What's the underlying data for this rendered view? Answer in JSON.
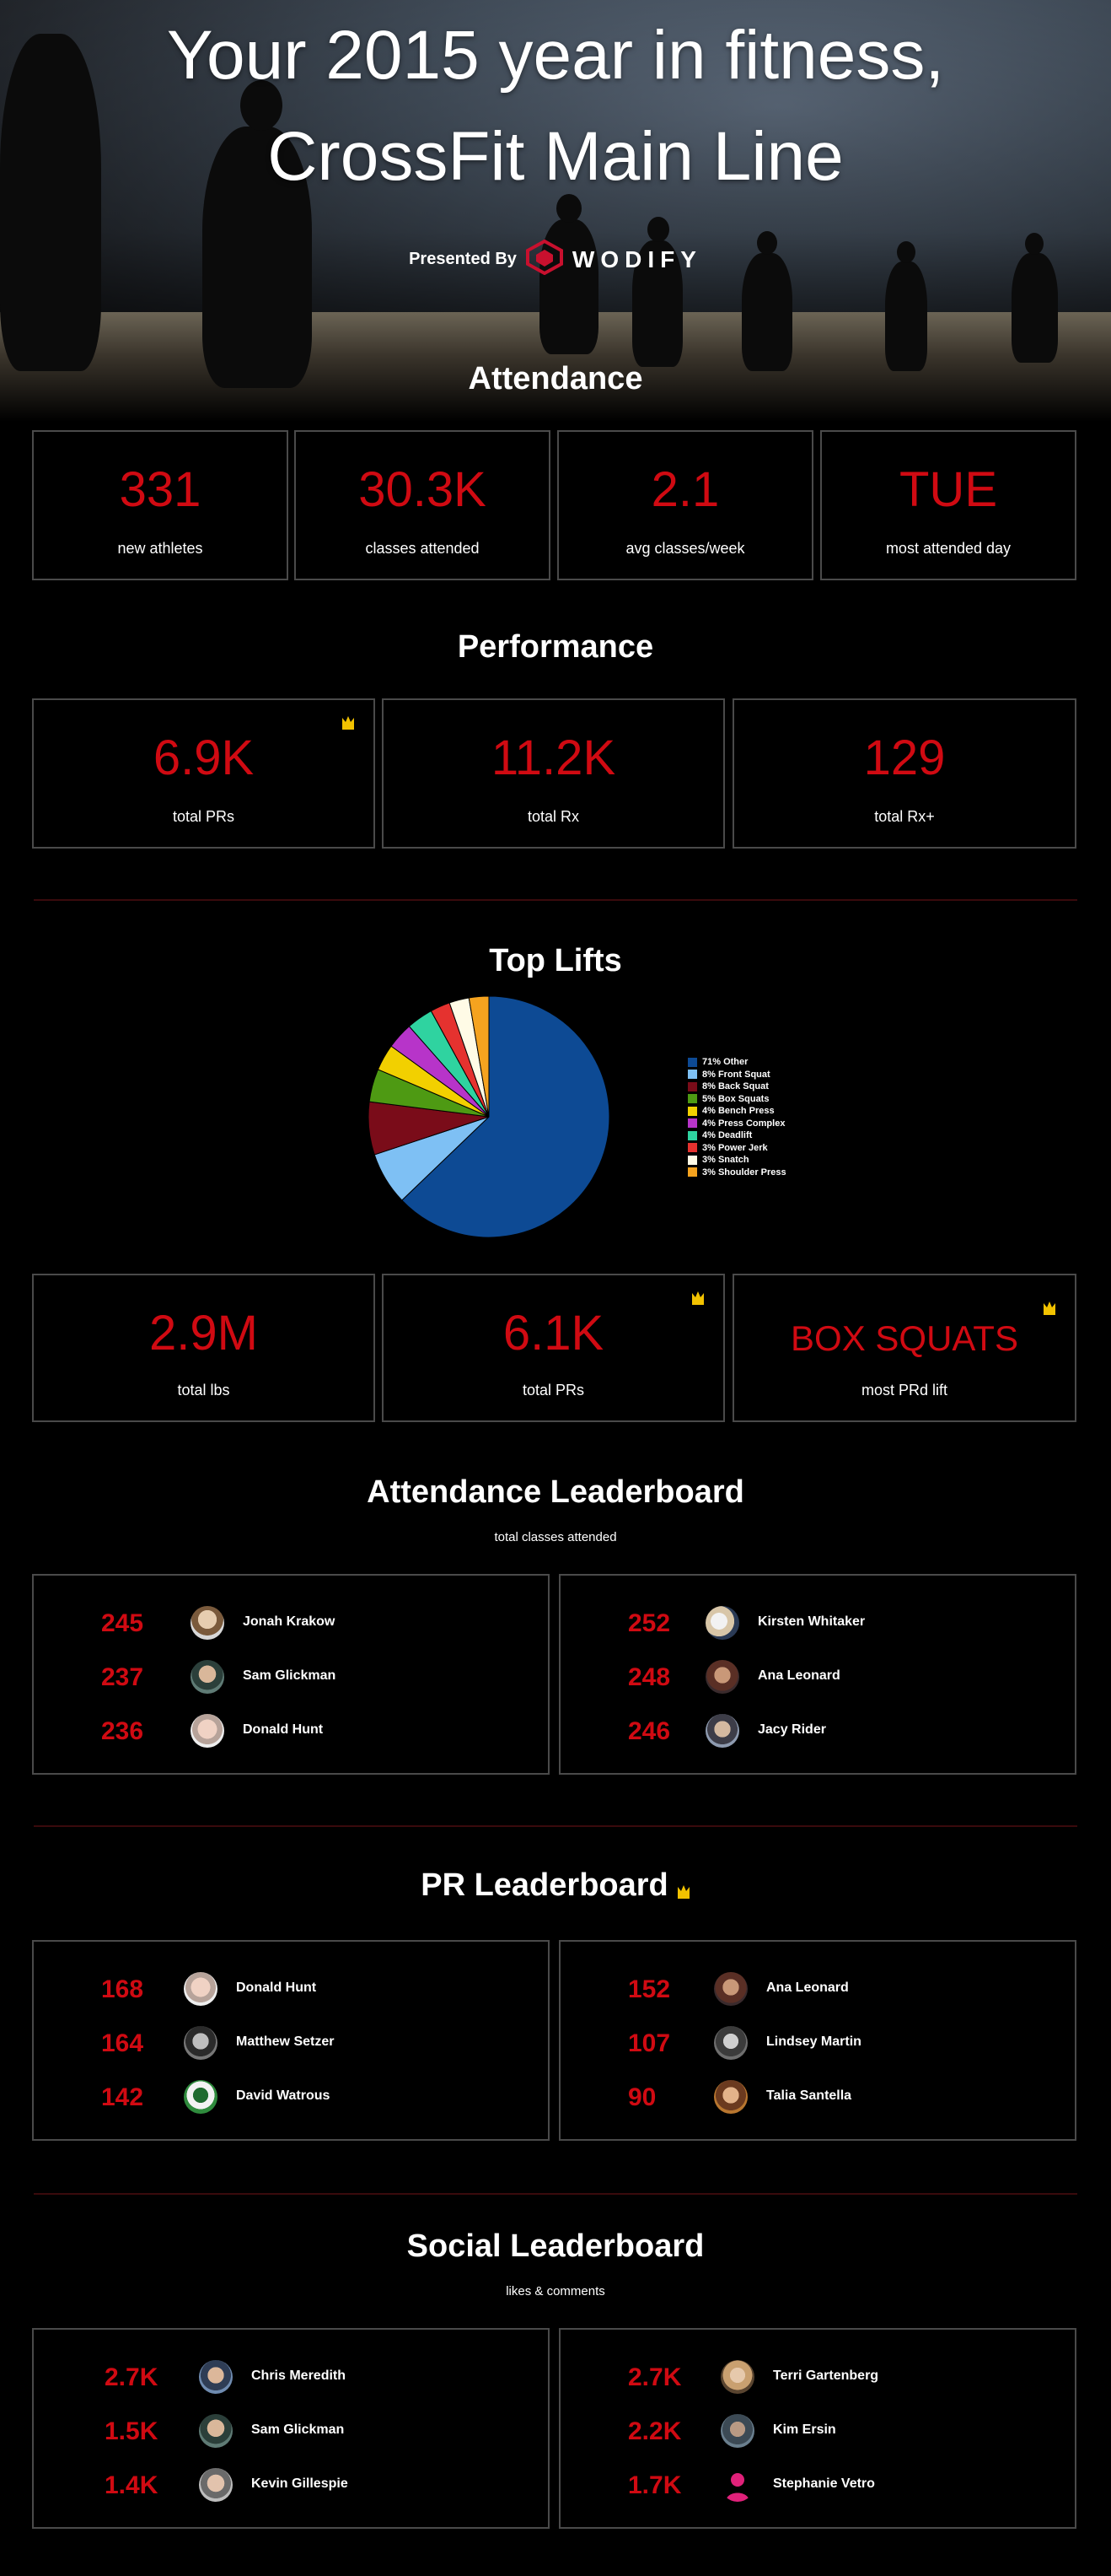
{
  "header": {
    "title_line1": "Your 2015 year in fitness,",
    "title_line2": "CrossFit Main Line",
    "presented_by": "Presented By",
    "brand": "WODIFY"
  },
  "attendance": {
    "title": "Attendance",
    "stats": [
      {
        "value": "331",
        "label": "new athletes"
      },
      {
        "value": "30.3K",
        "label": "classes attended"
      },
      {
        "value": "2.1",
        "label": "avg classes/week"
      },
      {
        "value": "TUE",
        "label": "most attended day"
      }
    ]
  },
  "performance": {
    "title": "Performance",
    "stats": [
      {
        "value": "6.9K",
        "label": "total PRs"
      },
      {
        "value": "11.2K",
        "label": "total Rx"
      },
      {
        "value": "129",
        "label": "total Rx+"
      }
    ]
  },
  "top_lifts": {
    "title": "Top Lifts",
    "stats": [
      {
        "value": "2.9M",
        "label": "total lbs"
      },
      {
        "value": "6.1K",
        "label": "total PRs"
      },
      {
        "value": "BOX SQUATS",
        "label": "most PRd lift"
      }
    ]
  },
  "chart_data": {
    "type": "pie",
    "categories": [
      "Other",
      "Front Squat",
      "Back Squat",
      "Box Squats",
      "Bench Press",
      "Press Complex",
      "Deadlift",
      "Power Jerk",
      "Snatch",
      "Shoulder Press"
    ],
    "values": [
      71,
      8,
      8,
      5,
      4,
      4,
      4,
      3,
      3,
      3
    ],
    "legend_labels": [
      "71% Other",
      "8% Front Squat",
      "8% Back Squat",
      "5% Box Squats",
      "4% Bench Press",
      "4% Press Complex",
      "4% Deadlift",
      "3% Power Jerk",
      "3% Snatch",
      "3% Shoulder Press"
    ],
    "colors": [
      "#0d4a94",
      "#7ec0f4",
      "#7a0c19",
      "#4e9a13",
      "#f2d000",
      "#b734c9",
      "#2fd3a0",
      "#e5322f",
      "#fffbe6",
      "#f5a31f"
    ],
    "legend_position": "right"
  },
  "attendance_leaderboard": {
    "title": "Attendance Leaderboard",
    "subtitle": "total classes attended",
    "left": [
      {
        "value": "245",
        "name": "Jonah Krakow"
      },
      {
        "value": "237",
        "name": "Sam Glickman"
      },
      {
        "value": "236",
        "name": "Donald  Hunt"
      }
    ],
    "right": [
      {
        "value": "252",
        "name": "Kirsten Whitaker"
      },
      {
        "value": "248",
        "name": "Ana Leonard"
      },
      {
        "value": "246",
        "name": "Jacy Rider"
      }
    ]
  },
  "pr_leaderboard": {
    "title": "PR Leaderboard",
    "left": [
      {
        "value": "168",
        "name": "Donald  Hunt"
      },
      {
        "value": "164",
        "name": "Matthew Setzer"
      },
      {
        "value": "142",
        "name": "David Watrous"
      }
    ],
    "right": [
      {
        "value": "152",
        "name": "Ana Leonard"
      },
      {
        "value": "107",
        "name": "Lindsey Martin"
      },
      {
        "value": "90",
        "name": "Talia Santella"
      }
    ]
  },
  "social_leaderboard": {
    "title": "Social Leaderboard",
    "subtitle": "likes & comments",
    "left": [
      {
        "value": "2.7K",
        "name": "Chris  Meredith"
      },
      {
        "value": "1.5K",
        "name": "Sam Glickman"
      },
      {
        "value": "1.4K",
        "name": "Kevin Gillespie"
      }
    ],
    "right": [
      {
        "value": "2.7K",
        "name": "Terri Gartenberg"
      },
      {
        "value": "2.2K",
        "name": "Kim Ersin"
      },
      {
        "value": "1.7K",
        "name": "Stephanie Vetro"
      }
    ]
  },
  "icons": {
    "crown": "crown-icon",
    "brand_logo": "wodify-logo-icon"
  },
  "colors": {
    "accent": "#d00a12",
    "box_border": "#4a4a4a",
    "divider": "#3a0a0c",
    "crown": "#f2c200"
  }
}
